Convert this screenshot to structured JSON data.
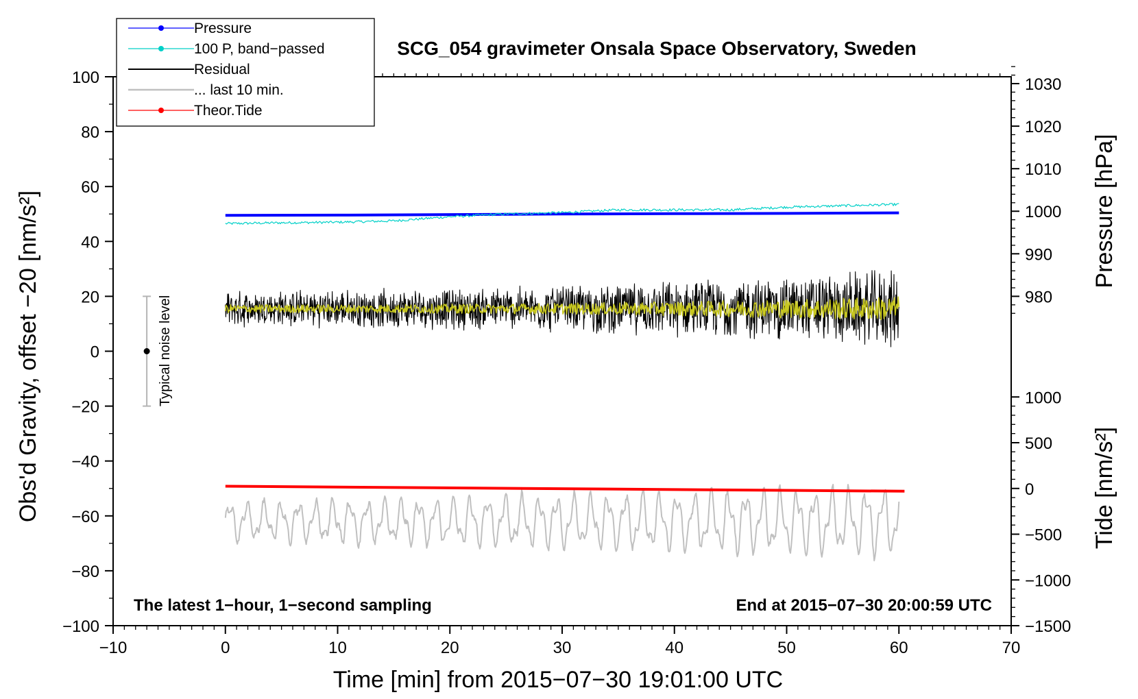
{
  "chart_data": {
    "type": "line",
    "title": "SCG_054 gravimeter Onsala Space Observatory, Sweden",
    "xlabel": "Time [min] from 2015−07−30 19:01:00 UTC",
    "ylabel_left": "Obs'd Gravity, offset −20 [nm/s²]",
    "ylabel_right_pressure": "Pressure [hPa]",
    "ylabel_right_tide": "Tide [nm/s²]",
    "xlim": [
      -10,
      70
    ],
    "ylim": [
      -100,
      100
    ],
    "x_ticks": [
      "−10",
      "0",
      "10",
      "20",
      "30",
      "40",
      "50",
      "60",
      "70"
    ],
    "y_ticks": [
      "−100",
      "−80",
      "−60",
      "−40",
      "−20",
      "0",
      "20",
      "40",
      "60",
      "80",
      "100"
    ],
    "pressure_ticks": [
      "980",
      "990",
      "1000",
      "1010",
      "1020",
      "1030"
    ],
    "tide_ticks": [
      "−1500",
      "−1000",
      "−500",
      "0",
      "500",
      "1000"
    ],
    "legend": {
      "position": "top-left",
      "entries": [
        {
          "label": "Pressure",
          "color": "#0000ff",
          "marker": true
        },
        {
          "label": "100 P, band−passed",
          "color": "#00d0c8",
          "marker": true
        },
        {
          "label": "Residual",
          "color": "#000000",
          "marker": false
        },
        {
          "label": "... last 10 min.",
          "color": "#c0c0c0",
          "marker": false
        },
        {
          "label": "Theor.Tide",
          "color": "#ff0000",
          "marker": true
        }
      ]
    },
    "annotations": {
      "bottom_left": "The latest 1−hour, 1−second sampling",
      "bottom_right": "End at 2015−07−30 20:00:59 UTC",
      "noise_label": "Typical noise level"
    },
    "noise_bar": {
      "x": -7,
      "center": 0,
      "low": -20,
      "high": 20
    },
    "series": [
      {
        "name": "Pressure",
        "color": "#0000ff",
        "x": [
          0,
          10,
          20,
          30,
          40,
          50,
          60
        ],
        "y": [
          49.5,
          49.6,
          49.8,
          50.0,
          50.1,
          50.2,
          50.4
        ]
      },
      {
        "name": "100 P, band−passed",
        "color": "#00d0c8",
        "x": [
          0,
          5,
          10,
          15,
          20,
          25,
          30,
          35,
          40,
          45,
          50,
          55,
          60
        ],
        "y": [
          46.5,
          46.8,
          47.0,
          47.5,
          49.0,
          50.0,
          50.5,
          51.5,
          51.5,
          51.5,
          52.5,
          53.0,
          53.5
        ]
      },
      {
        "name": "Residual",
        "color": "#000000",
        "x_range": [
          0,
          60
        ],
        "center": 15.5,
        "amplitude_start": 6,
        "amplitude_end": 13
      },
      {
        "name": "Residual (smoothed)",
        "color": "#c8c820",
        "x_range": [
          0,
          60
        ],
        "center": 15.5,
        "amplitude_start": 1.5,
        "amplitude_end": 4.5
      },
      {
        "name": "... last 10 min.",
        "color": "#c0c0c0",
        "x_range": [
          0,
          60
        ],
        "center": -62,
        "amplitude_start": 7,
        "amplitude_end": 13
      },
      {
        "name": "Theor.Tide",
        "color": "#ff0000",
        "x": [
          0,
          60.5
        ],
        "y": [
          -49.2,
          -51.0
        ]
      }
    ]
  }
}
